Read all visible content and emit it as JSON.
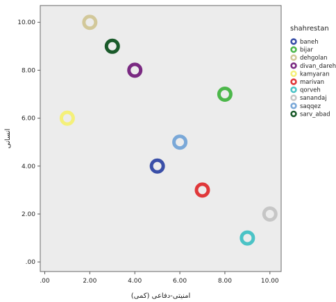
{
  "chart_data": {
    "type": "scatter",
    "xlabel": "امنیتی-دفاعی (کمی)",
    "ylabel": "انسانی",
    "xlim": [
      -0.2,
      10.5
    ],
    "ylim": [
      -0.4,
      10.7
    ],
    "x_ticks": [
      ".00",
      "2.00",
      "4.00",
      "6.00",
      "8.00",
      "10.00"
    ],
    "y_ticks": [
      ".00",
      "2.00",
      "4.00",
      "6.00",
      "8.00",
      "10.00"
    ],
    "x_tick_values": [
      0,
      2,
      4,
      6,
      8,
      10
    ],
    "y_tick_values": [
      0,
      2,
      4,
      6,
      8,
      10
    ],
    "grid": false,
    "legend": {
      "title": "shahrestan",
      "placement": "right"
    },
    "series": [
      {
        "name": "baneh",
        "color": "#3a4fa8",
        "x": 5,
        "y": 4
      },
      {
        "name": "bijar",
        "color": "#4cb74a",
        "x": 8,
        "y": 7
      },
      {
        "name": "dehgolan",
        "color": "#d2c89a",
        "x": 2,
        "y": 10
      },
      {
        "name": "divan_dareh",
        "color": "#7a2a82",
        "x": 4,
        "y": 8
      },
      {
        "name": "kamyaran",
        "color": "#f4f07a",
        "x": 1,
        "y": 6
      },
      {
        "name": "marivan",
        "color": "#e0383a",
        "x": 7,
        "y": 3
      },
      {
        "name": "qorveh",
        "color": "#4bc3c6",
        "x": 9,
        "y": 1
      },
      {
        "name": "sanandaj",
        "color": "#c6c6c6",
        "x": 10,
        "y": 2
      },
      {
        "name": "saqqez",
        "color": "#7aa8d8",
        "x": 6,
        "y": 5
      },
      {
        "name": "sarv_abad",
        "color": "#1a5a2a",
        "x": 3,
        "y": 9
      }
    ]
  }
}
